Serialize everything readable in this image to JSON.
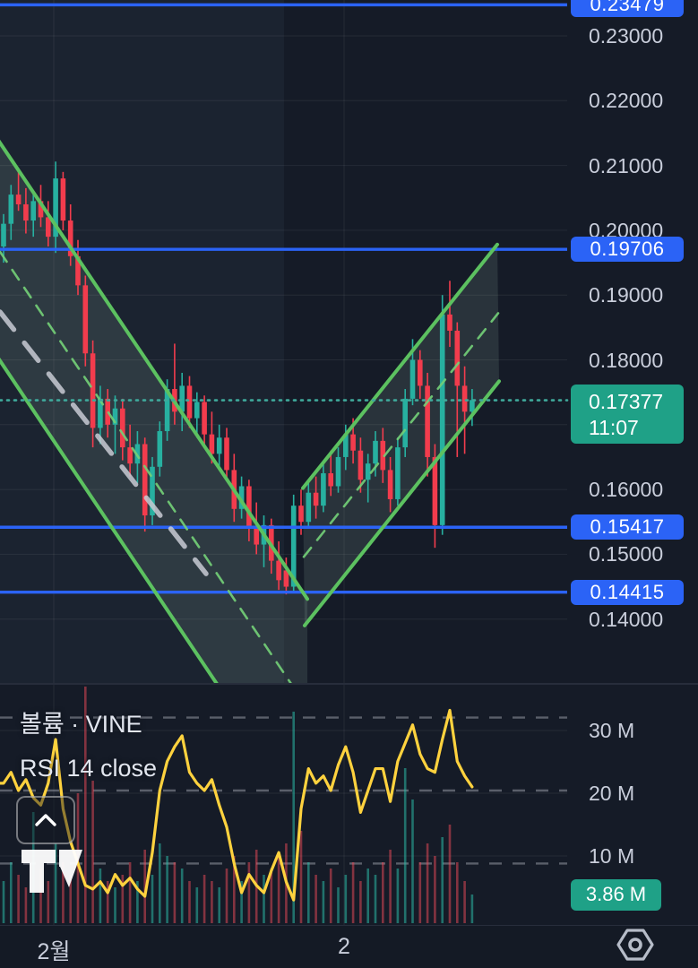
{
  "legend": {
    "volume": "볼륨 · VINE",
    "rsi": "RSI 14 close"
  },
  "price_axis": {
    "ticks": [
      {
        "text": "0.23000",
        "value": 0.23
      },
      {
        "text": "0.22000",
        "value": 0.22
      },
      {
        "text": "0.21000",
        "value": 0.21
      },
      {
        "text": "0.20000",
        "value": 0.2
      },
      {
        "text": "0.19000",
        "value": 0.19
      },
      {
        "text": "0.18000",
        "value": 0.18
      },
      {
        "text": "0.16000",
        "value": 0.16
      },
      {
        "text": "0.15000",
        "value": 0.15
      },
      {
        "text": "0.14000",
        "value": 0.14
      }
    ],
    "level_labels": [
      {
        "text": "0.23479",
        "value": 0.23479
      },
      {
        "text": "0.19706",
        "value": 0.19706
      },
      {
        "text": "0.15417",
        "value": 0.15417
      },
      {
        "text": "0.14415",
        "value": 0.14415
      }
    ],
    "current": {
      "price": "0.17377",
      "countdown": "11:07",
      "value": 0.17377
    }
  },
  "volume_axis": {
    "ticks": [
      {
        "text": "30 M",
        "value": 30
      },
      {
        "text": "20 M",
        "value": 20
      },
      {
        "text": "10 M",
        "value": 10
      }
    ],
    "last": {
      "text": "3.86 M",
      "value": 3.86
    }
  },
  "time_axis": {
    "labels": [
      {
        "text": "2월",
        "x": 60
      },
      {
        "text": "2",
        "x": 384
      }
    ]
  },
  "colors": {
    "bg": "#151b27",
    "session_band": "rgba(146,183,214,0.055)",
    "grid": "rgba(255,255,255,0.07)",
    "axis_text": "#c9cedb",
    "up": "#27b0a0",
    "down": "#f23c4d",
    "vol_up": "rgba(43,184,166,0.55)",
    "vol_down": "rgba(242,76,90,0.50)",
    "blue_line": "#2b63f6",
    "label_green": "#1fa187",
    "rsi_line": "#ffd23e",
    "rsi_dash": "rgba(220,224,232,0.35)",
    "channel": "#5cc160",
    "channel_median": "#74d178",
    "channel_fill": "rgba(158,192,173,0.15)",
    "gray_dash": "rgba(200,203,211,0.85)",
    "dotted_price": "#3fa99b",
    "separator": "#272d3b"
  },
  "chart_data": {
    "type": "candlestick+volume+rsi",
    "symbol": "VINE",
    "last_price": 0.17377,
    "countdown": "11:07",
    "price_levels": [
      0.23479,
      0.19706,
      0.15417,
      0.14415
    ],
    "y_grid": [
      0.23,
      0.22,
      0.21,
      0.2,
      0.19,
      0.18,
      0.17,
      0.16,
      0.15,
      0.14
    ],
    "ylim": [
      0.131,
      0.236
    ],
    "x_gridlines": [
      60,
      384
    ],
    "rsi_levels": [
      70,
      50,
      30
    ],
    "vol_gridlines": [
      30,
      20,
      10
    ],
    "candles": [
      [
        0.1975,
        0.2025,
        0.195,
        0.201
      ],
      [
        0.201,
        0.207,
        0.1985,
        0.2055
      ],
      [
        0.2055,
        0.209,
        0.203,
        0.204
      ],
      [
        0.204,
        0.2065,
        0.1995,
        0.2015
      ],
      [
        0.2015,
        0.206,
        0.199,
        0.2045
      ],
      [
        0.2045,
        0.207,
        0.2005,
        0.202
      ],
      [
        0.202,
        0.2045,
        0.1975,
        0.199
      ],
      [
        0.199,
        0.2106,
        0.1965,
        0.208
      ],
      [
        0.208,
        0.209,
        0.2,
        0.2015
      ],
      [
        0.2015,
        0.204,
        0.1945,
        0.196
      ],
      [
        0.196,
        0.1985,
        0.19,
        0.1915
      ],
      [
        0.1915,
        0.193,
        0.179,
        0.181
      ],
      [
        0.181,
        0.183,
        0.1665,
        0.1695
      ],
      [
        0.1695,
        0.176,
        0.167,
        0.174
      ],
      [
        0.174,
        0.1755,
        0.168,
        0.17
      ],
      [
        0.17,
        0.1745,
        0.1655,
        0.1725
      ],
      [
        0.1725,
        0.174,
        0.1645,
        0.1665
      ],
      [
        0.1665,
        0.17,
        0.162,
        0.164
      ],
      [
        0.164,
        0.169,
        0.161,
        0.167
      ],
      [
        0.167,
        0.168,
        0.1535,
        0.156
      ],
      [
        0.156,
        0.165,
        0.1545,
        0.1635
      ],
      [
        0.1635,
        0.1705,
        0.162,
        0.169
      ],
      [
        0.169,
        0.177,
        0.1675,
        0.1755
      ],
      [
        0.1755,
        0.1825,
        0.17,
        0.172
      ],
      [
        0.172,
        0.178,
        0.169,
        0.176
      ],
      [
        0.176,
        0.1775,
        0.1695,
        0.171
      ],
      [
        0.171,
        0.175,
        0.168,
        0.1735
      ],
      [
        0.1735,
        0.1745,
        0.167,
        0.1685
      ],
      [
        0.1685,
        0.172,
        0.164,
        0.1655
      ],
      [
        0.1655,
        0.17,
        0.163,
        0.168
      ],
      [
        0.168,
        0.1695,
        0.1615,
        0.163
      ],
      [
        0.163,
        0.1655,
        0.155,
        0.157
      ],
      [
        0.157,
        0.162,
        0.1555,
        0.1605
      ],
      [
        0.1605,
        0.1615,
        0.152,
        0.154
      ],
      [
        0.154,
        0.158,
        0.15,
        0.1515
      ],
      [
        0.1515,
        0.156,
        0.148,
        0.1545
      ],
      [
        0.1545,
        0.1555,
        0.147,
        0.149
      ],
      [
        0.149,
        0.152,
        0.1445,
        0.146
      ],
      [
        0.1475,
        0.1495,
        0.1438,
        0.145
      ],
      [
        0.145,
        0.1592,
        0.144,
        0.1575
      ],
      [
        0.1575,
        0.16,
        0.153,
        0.155
      ],
      [
        0.155,
        0.161,
        0.154,
        0.1595
      ],
      [
        0.1595,
        0.162,
        0.1555,
        0.1575
      ],
      [
        0.1575,
        0.164,
        0.1565,
        0.1625
      ],
      [
        0.1625,
        0.166,
        0.159,
        0.1605
      ],
      [
        0.1605,
        0.1665,
        0.1595,
        0.165
      ],
      [
        0.165,
        0.17,
        0.163,
        0.1685
      ],
      [
        0.1685,
        0.171,
        0.164,
        0.166
      ],
      [
        0.166,
        0.168,
        0.1595,
        0.1615
      ],
      [
        0.1615,
        0.1655,
        0.158,
        0.164
      ],
      [
        0.164,
        0.169,
        0.162,
        0.1675
      ],
      [
        0.1675,
        0.1695,
        0.161,
        0.163
      ],
      [
        0.163,
        0.165,
        0.1565,
        0.1585
      ],
      [
        0.1585,
        0.168,
        0.1575,
        0.1665
      ],
      [
        0.1665,
        0.1755,
        0.165,
        0.174
      ],
      [
        0.174,
        0.1832,
        0.173,
        0.18
      ],
      [
        0.18,
        0.1815,
        0.174,
        0.176
      ],
      [
        0.176,
        0.178,
        0.162,
        0.165
      ],
      [
        0.165,
        0.167,
        0.151,
        0.1545
      ],
      [
        0.1545,
        0.19,
        0.153,
        0.187
      ],
      [
        0.187,
        0.1922,
        0.182,
        0.1845
      ],
      [
        0.1845,
        0.1858,
        0.165,
        0.176
      ],
      [
        0.176,
        0.179,
        0.1655,
        0.172
      ],
      [
        0.172,
        0.1755,
        0.1698,
        0.1738
      ]
    ],
    "volume_m": [
      6,
      9,
      7,
      5,
      17,
      8,
      6,
      12,
      9,
      7,
      20,
      37,
      22,
      8,
      6,
      5,
      7,
      9,
      6,
      11,
      7,
      12,
      10,
      9,
      8,
      6,
      5,
      7,
      6,
      5,
      8,
      10,
      6,
      9,
      11,
      7,
      8,
      10,
      12,
      33,
      14,
      9,
      7,
      6,
      8,
      5,
      7,
      9,
      6,
      8,
      7,
      9,
      11,
      8,
      24,
      19,
      9,
      12,
      10,
      13,
      15,
      9,
      6,
      3.86
    ],
    "rsi": [
      52,
      55,
      50,
      53,
      48,
      46,
      52,
      64,
      45,
      36,
      30,
      24,
      23,
      25,
      22,
      27,
      24,
      26,
      23,
      21,
      33,
      50,
      58,
      62,
      65,
      55,
      52,
      50,
      53,
      46,
      40,
      30,
      22,
      27,
      24,
      22,
      28,
      33,
      25,
      20,
      45,
      56,
      52,
      54,
      50,
      57,
      62,
      55,
      44,
      50,
      56,
      56,
      47,
      58,
      63,
      68,
      60,
      56,
      55,
      64,
      72,
      58,
      54,
      51
    ],
    "channels": {
      "down": {
        "upper": [
          [
            -40,
            0.2217
          ],
          [
            343,
            0.1431
          ]
        ],
        "lower": [
          [
            -40,
            0.1881
          ],
          [
            343,
            0.1092
          ]
        ],
        "median": [
          [
            -40,
            0.2049
          ],
          [
            343,
            0.1263
          ]
        ]
      },
      "up": {
        "upper": [
          [
            338,
            0.1602
          ],
          [
            555,
            0.1978
          ]
        ],
        "lower": [
          [
            340,
            0.139
          ],
          [
            557,
            0.1767
          ]
        ],
        "median": [
          [
            339,
            0.1496
          ],
          [
            556,
            0.1872
          ]
        ]
      },
      "gray_line": [
        [
          0,
          0.1874
        ],
        [
          230,
          0.147
        ]
      ]
    }
  }
}
